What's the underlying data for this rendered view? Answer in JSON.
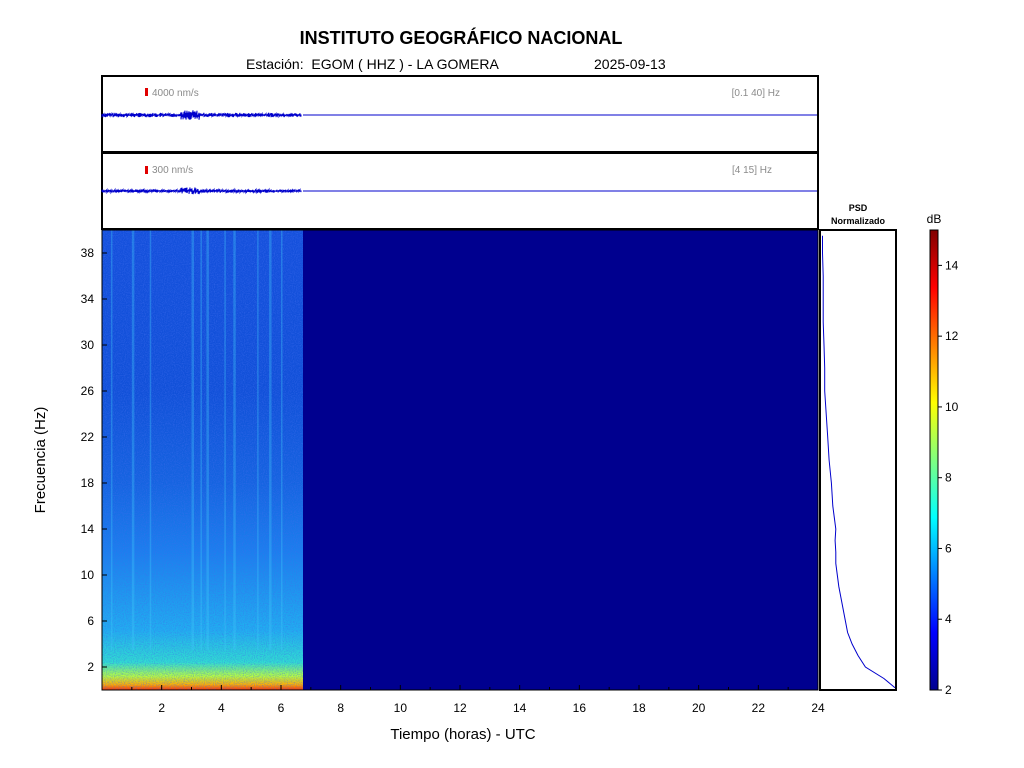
{
  "header": {
    "title": "INSTITUTO GEOGRÁFICO NACIONAL",
    "station": "Estación:  EGOM ( HHZ ) - LA GOMERA",
    "date": "2025-09-13"
  },
  "chart_data": [
    {
      "type": "line",
      "panel": "trace-broadband",
      "scale_label": "4000 nm/s",
      "band_label": "[0.1 40] Hz",
      "x_range_hours": [
        0,
        24
      ],
      "data_end_hours": 6.7,
      "color": "#0000cc"
    },
    {
      "type": "line",
      "panel": "trace-filtered",
      "scale_label": "300 nm/s",
      "band_label": "[4 15] Hz",
      "x_range_hours": [
        0,
        24
      ],
      "data_end_hours": 6.7,
      "color": "#0000cc"
    },
    {
      "type": "heatmap",
      "panel": "spectrogram",
      "xlabel": "Tiempo (horas) - UTC",
      "ylabel": "Frecuencia  (Hz)",
      "xlim": [
        0,
        24
      ],
      "ylim": [
        0,
        40
      ],
      "x_ticks": [
        2,
        4,
        6,
        8,
        10,
        12,
        14,
        16,
        18,
        20,
        22,
        24
      ],
      "y_ticks": [
        2,
        6,
        10,
        14,
        18,
        22,
        26,
        30,
        34,
        38
      ],
      "data_end_hours": 6.7,
      "colormap": "jet"
    },
    {
      "type": "line",
      "panel": "psd",
      "title_line1": "PSD",
      "title_line2": "Normalizado",
      "ylim": [
        0,
        40
      ],
      "freq": [
        0.2,
        1,
        2,
        3,
        4,
        5,
        6,
        7,
        8,
        9,
        10,
        11,
        12,
        13,
        14,
        15,
        16,
        17,
        18,
        20,
        22,
        24,
        26,
        28,
        30,
        32,
        34,
        36,
        38,
        39.5
      ],
      "value": [
        1.0,
        0.85,
        0.6,
        0.5,
        0.42,
        0.36,
        0.33,
        0.3,
        0.27,
        0.24,
        0.22,
        0.2,
        0.2,
        0.19,
        0.2,
        0.18,
        0.16,
        0.15,
        0.14,
        0.11,
        0.09,
        0.07,
        0.05,
        0.05,
        0.04,
        0.03,
        0.03,
        0.03,
        0.02,
        0.02
      ],
      "color": "#0000cc"
    },
    {
      "type": "heatmap",
      "panel": "colorbar",
      "unit_label": "dB",
      "range": [
        2,
        15
      ],
      "ticks": [
        2,
        4,
        6,
        8,
        10,
        12,
        14
      ]
    }
  ]
}
